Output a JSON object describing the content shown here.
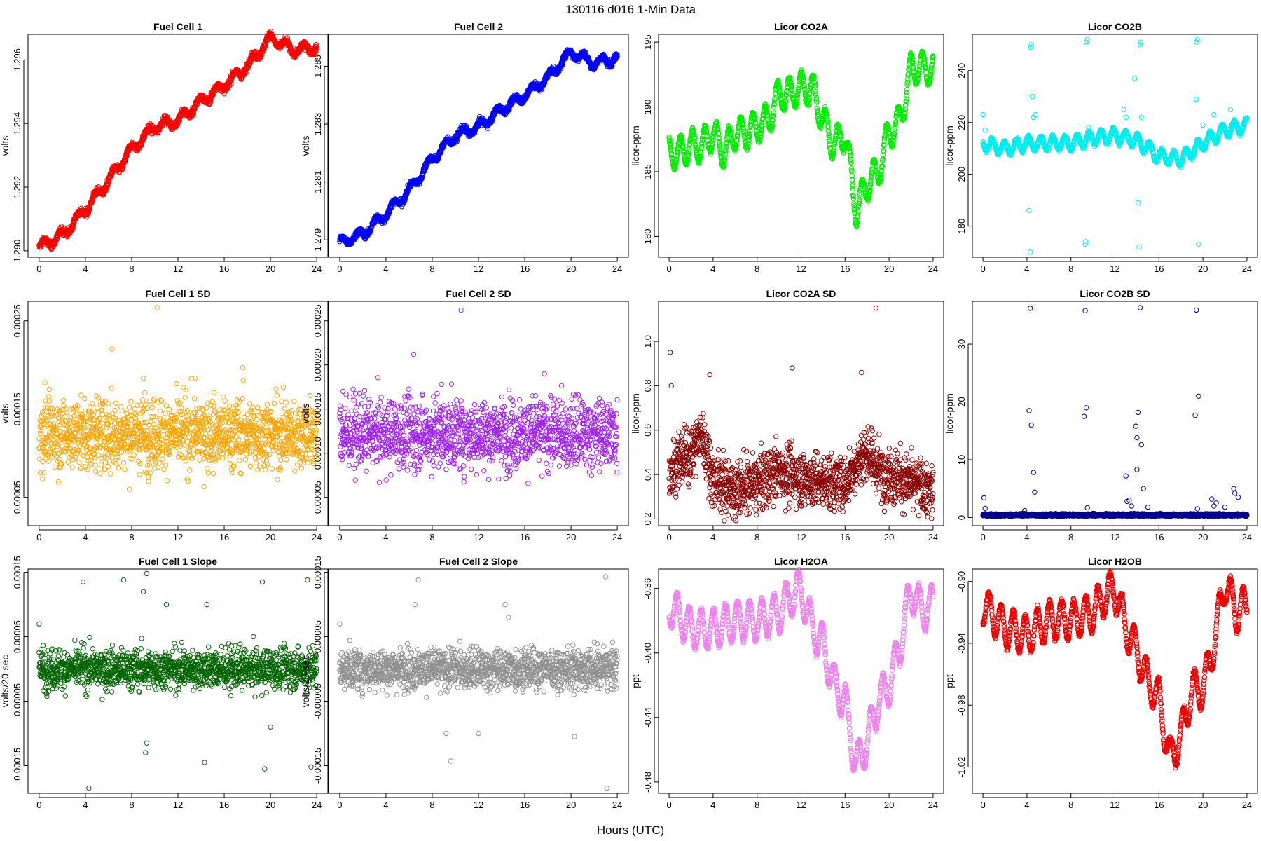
{
  "figure": {
    "title": "130116   d016   1-Min Data",
    "xlabel": "Hours (UTC)"
  },
  "chart_data": [
    {
      "id": "fc1",
      "type": "scatter",
      "title": "Fuel Cell 1",
      "ylabel": "volts",
      "color": "#ff0000",
      "xlim": [
        -0.96,
        24.96
      ],
      "ylim": [
        1.2898,
        1.2968
      ],
      "xticks": [
        0,
        4,
        8,
        12,
        16,
        20,
        24
      ],
      "yticks": [
        1.29,
        1.292,
        1.294,
        1.296
      ],
      "ytick_decimals": 3,
      "pattern": "trend",
      "start": 1.29,
      "end": 1.2965,
      "noise": 8e-05,
      "wave": 0.00015,
      "period": 1.5,
      "points": [
        [
          0,
          1.2901
        ],
        [
          2,
          1.2905
        ],
        [
          4,
          1.2913
        ],
        [
          6,
          1.2922
        ],
        [
          8,
          1.2932
        ],
        [
          10,
          1.2939
        ],
        [
          12,
          1.2941
        ],
        [
          14,
          1.2947
        ],
        [
          16,
          1.2952
        ],
        [
          18,
          1.2958
        ],
        [
          20,
          1.2967
        ],
        [
          22,
          1.2963
        ],
        [
          24,
          1.2964
        ]
      ]
    },
    {
      "id": "fc2",
      "type": "scatter",
      "title": "Fuel Cell 2",
      "ylabel": "volts",
      "color": "#0000ff",
      "xlim": [
        -0.96,
        24.96
      ],
      "ylim": [
        1.2784,
        1.2861
      ],
      "xticks": [
        0,
        4,
        8,
        12,
        16,
        20,
        24
      ],
      "yticks": [
        1.279,
        1.281,
        1.283,
        1.285
      ],
      "ytick_decimals": 3,
      "pattern": "trend",
      "start": 1.2789,
      "end": 1.2855,
      "noise": 8e-05,
      "wave": 0.00015,
      "period": 1.5,
      "points": [
        [
          0,
          1.2789
        ],
        [
          2,
          1.2792
        ],
        [
          4,
          1.2799
        ],
        [
          6,
          1.2807
        ],
        [
          8,
          1.2818
        ],
        [
          10,
          1.2826
        ],
        [
          12,
          1.2829
        ],
        [
          14,
          1.2835
        ],
        [
          16,
          1.284
        ],
        [
          18,
          1.2846
        ],
        [
          20,
          1.2855
        ],
        [
          22,
          1.2851
        ],
        [
          24,
          1.2853
        ]
      ]
    },
    {
      "id": "co2a",
      "type": "scatter",
      "title": "Licor CO2A",
      "ylabel": "licor-ppm",
      "color": "#00ee00",
      "xlim": [
        -0.96,
        24.96
      ],
      "ylim": [
        178.4,
        195.6
      ],
      "xticks": [
        0,
        4,
        8,
        12,
        16,
        20,
        24
      ],
      "yticks": [
        180,
        185,
        190,
        195
      ],
      "ytick_decimals": 0,
      "pattern": "wavy",
      "noise": 0.15,
      "wave": 1.2,
      "period": 1.1,
      "points": [
        [
          0,
          186.5
        ],
        [
          1,
          186.5
        ],
        [
          2,
          187
        ],
        [
          3,
          187
        ],
        [
          4,
          188
        ],
        [
          5,
          186.5
        ],
        [
          6,
          188
        ],
        [
          7,
          188
        ],
        [
          8,
          188.5
        ],
        [
          9,
          189
        ],
        [
          10,
          191
        ],
        [
          11,
          191
        ],
        [
          12,
          191.5
        ],
        [
          13,
          191.5
        ],
        [
          14,
          189
        ],
        [
          15,
          187
        ],
        [
          16,
          188
        ],
        [
          17,
          182
        ],
        [
          18,
          184
        ],
        [
          19,
          185
        ],
        [
          20,
          188
        ],
        [
          21,
          189
        ],
        [
          22,
          193
        ],
        [
          23,
          193
        ],
        [
          24,
          193
        ]
      ]
    },
    {
      "id": "co2b",
      "type": "scatter",
      "title": "Licor CO2B",
      "ylabel": "licor-ppm",
      "color": "#00eeee",
      "xlim": [
        -0.96,
        24.96
      ],
      "ylim": [
        168,
        254
      ],
      "xticks": [
        0,
        4,
        8,
        12,
        16,
        20,
        24
      ],
      "yticks": [
        180,
        200,
        220,
        240
      ],
      "ytick_decimals": 0,
      "pattern": "wavy",
      "noise": 0.6,
      "wave": 2.5,
      "period": 1.1,
      "points": [
        [
          0,
          212
        ],
        [
          2,
          210
        ],
        [
          4,
          212
        ],
        [
          6,
          212
        ],
        [
          8,
          212
        ],
        [
          10,
          214
        ],
        [
          12,
          215
        ],
        [
          14,
          213
        ],
        [
          16,
          207
        ],
        [
          18,
          206
        ],
        [
          20,
          212
        ],
        [
          22,
          217
        ],
        [
          24,
          219
        ]
      ],
      "outliers": [
        [
          0,
          223
        ],
        [
          0.2,
          217
        ],
        [
          4.2,
          186
        ],
        [
          4.3,
          170
        ],
        [
          4.35,
          249
        ],
        [
          4.4,
          250
        ],
        [
          4.5,
          230
        ],
        [
          4.6,
          222
        ],
        [
          4.8,
          223
        ],
        [
          9.3,
          173
        ],
        [
          9.35,
          174
        ],
        [
          9.4,
          251
        ],
        [
          9.5,
          252
        ],
        [
          9.6,
          218
        ],
        [
          13.8,
          237
        ],
        [
          14.2,
          172
        ],
        [
          14.3,
          250
        ],
        [
          14.35,
          251
        ],
        [
          14.4,
          222
        ],
        [
          14.1,
          189
        ],
        [
          19.4,
          251
        ],
        [
          19.5,
          252
        ],
        [
          19.6,
          173
        ],
        [
          19.4,
          229
        ],
        [
          13,
          222
        ],
        [
          12.8,
          225
        ],
        [
          20,
          219
        ],
        [
          21,
          223
        ],
        [
          22.5,
          225
        ]
      ]
    },
    {
      "id": "fc1sd",
      "type": "scatter",
      "title": "Fuel Cell 1 SD",
      "ylabel": "volts",
      "color": "#ffa500",
      "xlim": [
        -0.96,
        24.96
      ],
      "ylim": [
        1.8e-05,
        0.000272
      ],
      "xticks": [
        0,
        4,
        8,
        12,
        16,
        20,
        24
      ],
      "yticks": [
        5e-05,
        0.00015,
        0.00025
      ],
      "ytick_decimals": 5,
      "pattern": "scatter",
      "center": 0.000122,
      "spread": 2.8e-05,
      "clip": [
        3e-05,
        0.00019
      ],
      "outliers": [
        [
          10.2,
          0.000265
        ],
        [
          6.3,
          0.000218
        ],
        [
          17.6,
          0.000197
        ],
        [
          0.5,
          0.00018
        ],
        [
          9,
          0.000185
        ],
        [
          13.5,
          0.000185
        ]
      ]
    },
    {
      "id": "fc2sd",
      "type": "scatter",
      "title": "Fuel Cell 2 SD",
      "ylabel": "volts",
      "color": "#a020f0",
      "xlim": [
        -0.96,
        24.96
      ],
      "ylim": [
        1.8e-05,
        0.000272
      ],
      "xticks": [
        0,
        4,
        8,
        12,
        16,
        20,
        24
      ],
      "yticks": [
        5e-05,
        0.0001,
        0.00015,
        0.0002,
        0.00025
      ],
      "ytick_decimals": 5,
      "pattern": "scatter",
      "center": 0.000122,
      "spread": 2.8e-05,
      "clip": [
        3e-05,
        0.00019
      ],
      "outliers": [
        [
          10.5,
          0.000262
        ],
        [
          6.4,
          0.000212
        ],
        [
          17.7,
          0.00019
        ],
        [
          0.3,
          0.00017
        ],
        [
          8.8,
          0.000178
        ]
      ]
    },
    {
      "id": "co2asd",
      "type": "scatter",
      "title": "Licor CO2A SD",
      "ylabel": "licor-ppm",
      "color": "#8b0000",
      "xlim": [
        -0.96,
        24.96
      ],
      "ylim": [
        0.17,
        1.18
      ],
      "xticks": [
        0,
        4,
        8,
        12,
        16,
        20,
        24
      ],
      "yticks": [
        0.2,
        0.4,
        0.6,
        0.8,
        1.0
      ],
      "ytick_decimals": 1,
      "pattern": "scatterprofile",
      "spread": 0.09,
      "clip": [
        0.19,
        0.9
      ],
      "points": [
        [
          0,
          0.42
        ],
        [
          2,
          0.5
        ],
        [
          3,
          0.58
        ],
        [
          4,
          0.38
        ],
        [
          6,
          0.33
        ],
        [
          8,
          0.36
        ],
        [
          10,
          0.42
        ],
        [
          12,
          0.38
        ],
        [
          14,
          0.37
        ],
        [
          16,
          0.36
        ],
        [
          17,
          0.45
        ],
        [
          18,
          0.5
        ],
        [
          19,
          0.42
        ],
        [
          21,
          0.38
        ],
        [
          24,
          0.32
        ]
      ],
      "outliers": [
        [
          0.1,
          0.95
        ],
        [
          18.8,
          1.15
        ],
        [
          11.2,
          0.88
        ],
        [
          3.7,
          0.85
        ],
        [
          17.5,
          0.86
        ],
        [
          0.2,
          0.8
        ]
      ]
    },
    {
      "id": "co2bsd",
      "type": "scatter",
      "title": "Licor CO2B SD",
      "ylabel": "licor-ppm",
      "color": "#00008b",
      "xlim": [
        -0.96,
        24.96
      ],
      "ylim": [
        -1.4,
        37.4
      ],
      "xticks": [
        0,
        4,
        8,
        12,
        16,
        20,
        24
      ],
      "yticks": [
        0,
        10,
        20,
        30
      ],
      "ytick_decimals": 0,
      "pattern": "scatter",
      "center": 0.45,
      "spread": 0.15,
      "clip": [
        0.05,
        1.2
      ],
      "outliers": [
        [
          0.1,
          3.4
        ],
        [
          0.2,
          1.6
        ],
        [
          4.3,
          36.2
        ],
        [
          4.2,
          18.5
        ],
        [
          4.4,
          16
        ],
        [
          4.6,
          7.8
        ],
        [
          4.7,
          4.4
        ],
        [
          9.3,
          35.8
        ],
        [
          9.2,
          17.5
        ],
        [
          9.4,
          19
        ],
        [
          9.5,
          1.7
        ],
        [
          14.3,
          36.3
        ],
        [
          14.1,
          18.2
        ],
        [
          13.9,
          15.8
        ],
        [
          14.0,
          13.8
        ],
        [
          14.4,
          12.6
        ],
        [
          14.0,
          8.3
        ],
        [
          14.6,
          5.0
        ],
        [
          13.0,
          7.2
        ],
        [
          13.1,
          2.8
        ],
        [
          13.3,
          3.0
        ],
        [
          13.5,
          2.0
        ],
        [
          19.4,
          35.9
        ],
        [
          19.6,
          21
        ],
        [
          19.3,
          17.7
        ],
        [
          19.5,
          1.5
        ],
        [
          20.8,
          3.2
        ],
        [
          21.2,
          2.5
        ],
        [
          22.8,
          5.0
        ],
        [
          22.9,
          4.2
        ],
        [
          23.2,
          3.5
        ],
        [
          21.0,
          2.0
        ],
        [
          22.0,
          1.8
        ],
        [
          15,
          1.8
        ],
        [
          3.8,
          1.2
        ]
      ]
    },
    {
      "id": "fc1sl",
      "type": "scatter",
      "title": "Fuel Cell 1 Slope",
      "ylabel": "volts/20-sec",
      "color": "#006400",
      "xlim": [
        -0.96,
        24.96
      ],
      "ylim": [
        -0.000193,
        0.000155
      ],
      "xticks": [
        0,
        4,
        8,
        12,
        16,
        20,
        24
      ],
      "yticks": [
        -0.00015,
        -5e-05,
        5e-05,
        0.00015
      ],
      "ytick_decimals": 5,
      "pattern": "scatter",
      "center": 0.0,
      "spread": 2.2e-05,
      "clip": [
        -6e-05,
        6.5e-05
      ],
      "outliers": [
        [
          4.3,
          -0.000185
        ],
        [
          9.3,
          0.000148
        ],
        [
          7.3,
          0.000138
        ],
        [
          23.2,
          0.000138
        ],
        [
          19.3,
          0.000135
        ],
        [
          9.0,
          0.00012
        ],
        [
          3.8,
          0.000135
        ],
        [
          14.3,
          -0.000145
        ],
        [
          19.5,
          -0.000155
        ],
        [
          23.5,
          -0.000152
        ],
        [
          9.2,
          -0.00013
        ],
        [
          9.3,
          -0.000115
        ],
        [
          11.0,
          0.0001
        ],
        [
          14.5,
          0.0001
        ],
        [
          0,
          7e-05
        ],
        [
          20,
          -9e-05
        ]
      ]
    },
    {
      "id": "fc2sl",
      "type": "scatter",
      "title": "Fuel Cell 2 Slope",
      "ylabel": "volts/20-sec",
      "color": "#909090",
      "xlim": [
        -0.96,
        24.96
      ],
      "ylim": [
        -0.000193,
        0.000155
      ],
      "xticks": [
        0,
        4,
        8,
        12,
        16,
        20,
        24
      ],
      "yticks": [
        -0.00015,
        -5e-05,
        5e-05,
        0.00015
      ],
      "ytick_decimals": 5,
      "pattern": "scatter",
      "center": 0.0,
      "spread": 2.2e-05,
      "clip": [
        -6e-05,
        6.5e-05
      ],
      "outliers": [
        [
          23.1,
          -0.000185
        ],
        [
          23.0,
          0.000143
        ],
        [
          6.8,
          0.000138
        ],
        [
          9.6,
          -0.000143
        ],
        [
          20.3,
          -0.000105
        ],
        [
          9.2,
          -0.0001
        ],
        [
          14.6,
          8e-05
        ],
        [
          6.5,
          0.0001
        ],
        [
          0,
          7e-05
        ],
        [
          14.3,
          0.0001
        ],
        [
          12,
          -0.0001
        ]
      ]
    },
    {
      "id": "h2oa",
      "type": "scatter",
      "title": "Licor H2OA",
      "ylabel": "ppt",
      "color": "#ee82ee",
      "xlim": [
        -0.96,
        24.96
      ],
      "ylim": [
        -0.487,
        -0.348
      ],
      "xticks": [
        0,
        4,
        8,
        12,
        16,
        20,
        24
      ],
      "yticks": [
        -0.48,
        -0.44,
        -0.4,
        -0.36
      ],
      "ytick_decimals": 2,
      "pattern": "wavy",
      "noise": 0.0015,
      "wave": 0.012,
      "period": 1.1,
      "points": [
        [
          0,
          -0.37
        ],
        [
          2,
          -0.385
        ],
        [
          4,
          -0.385
        ],
        [
          6,
          -0.38
        ],
        [
          8,
          -0.38
        ],
        [
          10,
          -0.375
        ],
        [
          11,
          -0.365
        ],
        [
          12,
          -0.36
        ],
        [
          13,
          -0.385
        ],
        [
          14,
          -0.395
        ],
        [
          15,
          -0.42
        ],
        [
          16,
          -0.43
        ],
        [
          17,
          -0.47
        ],
        [
          18,
          -0.455
        ],
        [
          19,
          -0.43
        ],
        [
          20,
          -0.42
        ],
        [
          21,
          -0.395
        ],
        [
          22,
          -0.36
        ],
        [
          23,
          -0.375
        ],
        [
          24,
          -0.37
        ]
      ]
    },
    {
      "id": "h2ob",
      "type": "scatter",
      "title": "Licor H2OB",
      "ylabel": "ppt",
      "color": "#ee0000",
      "xlim": [
        -0.96,
        24.96
      ],
      "ylim": [
        -1.037,
        -0.892
      ],
      "xticks": [
        0,
        4,
        8,
        12,
        16,
        20,
        24
      ],
      "yticks": [
        -1.02,
        -0.98,
        -0.94,
        -0.9
      ],
      "ytick_decimals": 2,
      "pattern": "wavy",
      "noise": 0.0015,
      "wave": 0.012,
      "period": 1.1,
      "points": [
        [
          0,
          -0.915
        ],
        [
          2,
          -0.93
        ],
        [
          4,
          -0.935
        ],
        [
          6,
          -0.925
        ],
        [
          8,
          -0.925
        ],
        [
          10,
          -0.92
        ],
        [
          11,
          -0.91
        ],
        [
          12,
          -0.905
        ],
        [
          13,
          -0.93
        ],
        [
          14,
          -0.945
        ],
        [
          15,
          -0.965
        ],
        [
          16,
          -0.975
        ],
        [
          17,
          -1.015
        ],
        [
          18,
          -1.0
        ],
        [
          19,
          -0.97
        ],
        [
          20,
          -0.97
        ],
        [
          21,
          -0.94
        ],
        [
          22,
          -0.9
        ],
        [
          23,
          -0.92
        ],
        [
          24,
          -0.915
        ]
      ]
    }
  ]
}
